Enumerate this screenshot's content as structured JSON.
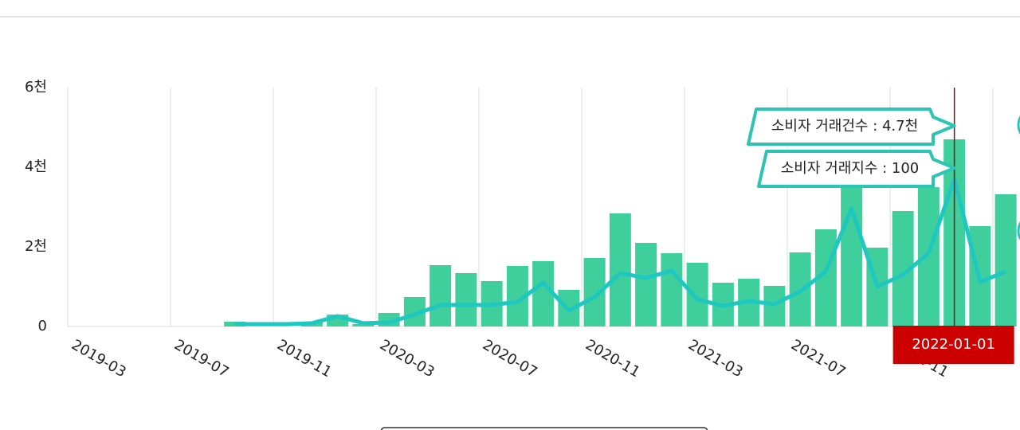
{
  "chart_data": {
    "type": "bar-line",
    "categories": [
      "2019-03",
      null,
      null,
      null,
      "2019-07",
      null,
      null,
      null,
      "2019-11",
      null,
      null,
      null,
      "2020-03",
      null,
      null,
      null,
      "2020-07",
      null,
      null,
      null,
      "2020-11",
      null,
      null,
      null,
      "2021-03",
      null,
      null,
      null,
      "2021-07",
      null,
      null,
      null,
      "2021-11",
      null,
      null,
      null,
      null
    ],
    "series": [
      {
        "type": "bar",
        "color": "#3ecf9c",
        "values": [
          null,
          null,
          null,
          null,
          null,
          null,
          120,
          null,
          null,
          120,
          300,
          60,
          340,
          740,
          1540,
          1340,
          1140,
          1520,
          1640,
          920,
          1720,
          2840,
          2100,
          1840,
          1600,
          1100,
          1200,
          1020,
          1860,
          2440,
          3640,
          1980,
          2900,
          3500,
          4700,
          2520,
          3320
        ]
      },
      {
        "type": "line",
        "axis": "y2",
        "color": "#1ec8c0",
        "values": [
          null,
          null,
          null,
          null,
          null,
          null,
          1.6,
          1.6,
          1.6,
          2.2,
          7,
          2.2,
          2.7,
          8.1,
          14.6,
          14.6,
          14.6,
          16.7,
          29.7,
          10.8,
          20,
          36.2,
          32.9,
          37.8,
          18.4,
          14,
          17.3,
          15.1,
          23.8,
          37.3,
          79.9,
          27,
          35.1,
          49.7,
          100,
          30.2,
          37.3
        ]
      }
    ],
    "ylim": [
      0,
      6000
    ],
    "yticks": [
      0,
      {
        "value": 2000,
        "label": "2천"
      },
      {
        "value": 4000,
        "label": "4천"
      },
      {
        "value": 6000,
        "label": "6천"
      }
    ],
    "y2lim": [
      0,
      162
    ],
    "tooltip": {
      "x_label": "2022-01-01",
      "lines": [
        "소비자 거래건수 : 4.7천",
        "소비자 거래지수 : 100"
      ]
    }
  }
}
